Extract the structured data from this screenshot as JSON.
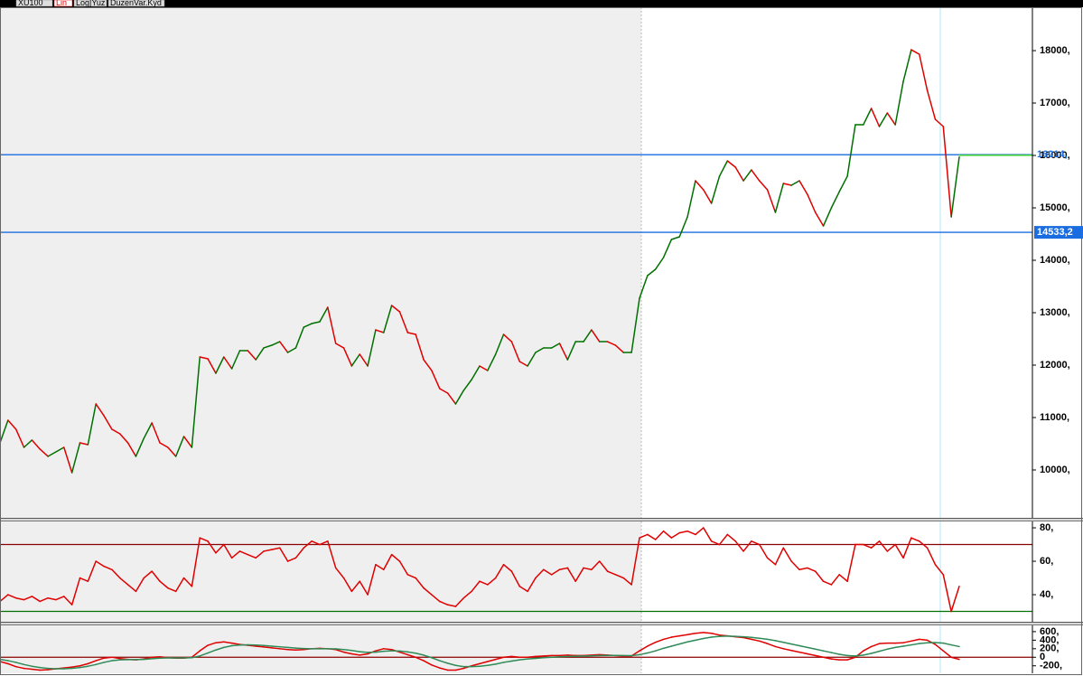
{
  "toolbar": {
    "tabs": [
      "XU100",
      "Lin",
      "Log|Yuz",
      "DuzenVar.Kyd"
    ]
  },
  "chart_data": [
    {
      "type": "line",
      "ylim": [
        9086,
        18828
      ],
      "yticks": [
        {
          "value": 18000,
          "label": "18000,"
        },
        {
          "value": 17000,
          "label": "17000,"
        },
        {
          "value": 16000,
          "label": "16000,"
        },
        {
          "value": 15000,
          "label": "15000,"
        },
        {
          "value": 14000,
          "label": "14000,"
        },
        {
          "value": 13000,
          "label": "13000,"
        },
        {
          "value": 12000,
          "label": "12000,"
        },
        {
          "value": 11000,
          "label": "11000,"
        },
        {
          "value": 10000,
          "label": "10000,"
        }
      ],
      "down_color": "#e00000",
      "levels": [
        {
          "value": 16014,
          "label": "16014,",
          "color": "#1a6de0",
          "boxed": false
        },
        {
          "value": 14533.2,
          "label": "14533,2",
          "color": "#1a6de0",
          "boxed": true
        }
      ],
      "series": [
        {
          "name": "XU100",
          "color": "#007000",
          "last_label": "15971,1",
          "values": [
            10517,
            10948,
            10776,
            10431,
            10569,
            10397,
            10259,
            10345,
            10431,
            9948,
            10517,
            10483,
            11259,
            11035,
            10776,
            10690,
            10517,
            10259,
            10604,
            10897,
            10517,
            10431,
            10259,
            10638,
            10431,
            12155,
            12121,
            11845,
            12155,
            11931,
            12276,
            12276,
            12103,
            12328,
            12379,
            12448,
            12241,
            12328,
            12724,
            12793,
            12828,
            13103,
            12414,
            12328,
            11983,
            12207,
            11983,
            12672,
            12621,
            13138,
            13017,
            12621,
            12586,
            12103,
            11897,
            11552,
            11466,
            11259,
            11517,
            11724,
            11983,
            11897,
            12207,
            12586,
            12448,
            12069,
            11983,
            12241,
            12328,
            12328,
            12414,
            12103,
            12448,
            12448,
            12672,
            12448,
            12448,
            12379,
            12241,
            12241,
            13276,
            13707,
            13828,
            14052,
            14397,
            14448,
            14828,
            15517,
            15345,
            15086,
            15603,
            15897,
            15776,
            15517,
            15724,
            15517,
            15345,
            14914,
            15466,
            15431,
            15517,
            15259,
            14914,
            14655,
            15000,
            15310,
            15603,
            16586,
            16586,
            16897,
            16552,
            16810,
            16586,
            17414,
            18017,
            17931,
            17241,
            16690,
            16552,
            14828,
            15971.1
          ]
        }
      ]
    },
    {
      "type": "line",
      "ylim": [
        23.8,
        83.8
      ],
      "yticks": [
        {
          "value": 80,
          "label": "80,"
        },
        {
          "value": 60,
          "label": "60,"
        },
        {
          "value": 40,
          "label": "40,"
        }
      ],
      "levels": [
        {
          "value": 70,
          "color": "#8b0000"
        },
        {
          "value": 30,
          "color": "#007000"
        }
      ],
      "series": [
        {
          "name": "RSI",
          "color": "#e00000",
          "values": [
            36,
            40,
            38,
            37,
            39,
            36,
            38,
            37,
            39,
            34,
            50,
            48,
            60,
            57,
            55,
            50,
            46,
            42,
            50,
            54,
            48,
            44,
            42,
            50,
            45,
            74,
            72,
            65,
            70,
            62,
            66,
            64,
            62,
            66,
            67,
            68,
            60,
            62,
            68,
            72,
            70,
            72,
            56,
            50,
            42,
            48,
            40,
            58,
            55,
            64,
            60,
            52,
            50,
            44,
            40,
            36,
            34,
            33,
            38,
            42,
            48,
            46,
            50,
            58,
            54,
            45,
            42,
            50,
            55,
            52,
            55,
            56,
            48,
            56,
            55,
            60,
            54,
            52,
            50,
            46,
            74,
            76,
            73,
            78,
            74,
            77,
            78,
            76,
            80,
            72,
            70,
            76,
            72,
            66,
            72,
            70,
            62,
            58,
            68,
            60,
            55,
            56,
            54,
            48,
            46,
            52,
            48,
            70,
            70,
            68,
            72,
            66,
            70,
            62,
            74,
            72,
            68,
            58,
            52,
            30,
            45
          ]
        }
      ]
    },
    {
      "type": "line",
      "ylim": [
        -375,
        746
      ],
      "yticks": [
        {
          "value": 600,
          "label": "600,"
        },
        {
          "value": 400,
          "label": "400,"
        },
        {
          "value": 200,
          "label": "200,"
        },
        0,
        {
          "value": -200,
          "label": "-200,"
        }
      ],
      "levels": [
        {
          "value": 0,
          "color": "#8b0000"
        }
      ],
      "series": [
        {
          "name": "MACD",
          "color": "#e00000",
          "values": [
            -100,
            -150,
            -220,
            -260,
            -280,
            -300,
            -290,
            -270,
            -250,
            -230,
            -200,
            -150,
            -80,
            -20,
            0,
            -30,
            -50,
            -60,
            -40,
            0,
            10,
            -10,
            -20,
            -20,
            0,
            150,
            280,
            340,
            360,
            330,
            300,
            280,
            260,
            240,
            220,
            200,
            180,
            170,
            180,
            200,
            210,
            200,
            180,
            120,
            80,
            50,
            80,
            150,
            200,
            180,
            120,
            60,
            0,
            -80,
            -180,
            -250,
            -300,
            -300,
            -260,
            -200,
            -150,
            -100,
            -50,
            0,
            20,
            0,
            0,
            20,
            30,
            40,
            40,
            50,
            40,
            40,
            50,
            60,
            50,
            40,
            30,
            30,
            150,
            260,
            350,
            420,
            470,
            500,
            530,
            560,
            580,
            560,
            520,
            500,
            480,
            460,
            420,
            380,
            320,
            250,
            200,
            160,
            120,
            80,
            40,
            0,
            -40,
            -60,
            -60,
            0,
            150,
            250,
            320,
            330,
            330,
            340,
            380,
            420,
            400,
            300,
            150,
            0,
            -50
          ]
        },
        {
          "name": "Signal",
          "color": "#2e8b57",
          "values": [
            -50,
            -80,
            -120,
            -170,
            -210,
            -240,
            -260,
            -270,
            -270,
            -260,
            -240,
            -210,
            -170,
            -120,
            -80,
            -60,
            -55,
            -55,
            -50,
            -35,
            -20,
            -15,
            -15,
            -15,
            -10,
            30,
            100,
            170,
            230,
            270,
            285,
            290,
            285,
            275,
            260,
            245,
            230,
            215,
            205,
            200,
            200,
            200,
            195,
            180,
            160,
            130,
            115,
            120,
            140,
            150,
            145,
            125,
            95,
            50,
            -10,
            -80,
            -140,
            -190,
            -220,
            -220,
            -210,
            -190,
            -160,
            -120,
            -90,
            -60,
            -40,
            -25,
            -10,
            0,
            10,
            20,
            25,
            30,
            35,
            40,
            42,
            42,
            40,
            38,
            60,
            100,
            150,
            210,
            260,
            310,
            360,
            400,
            440,
            470,
            490,
            495,
            490,
            480,
            465,
            445,
            420,
            390,
            350,
            310,
            270,
            230,
            190,
            150,
            110,
            70,
            40,
            30,
            50,
            90,
            140,
            190,
            230,
            260,
            290,
            320,
            340,
            345,
            330,
            290,
            250
          ]
        }
      ]
    }
  ]
}
